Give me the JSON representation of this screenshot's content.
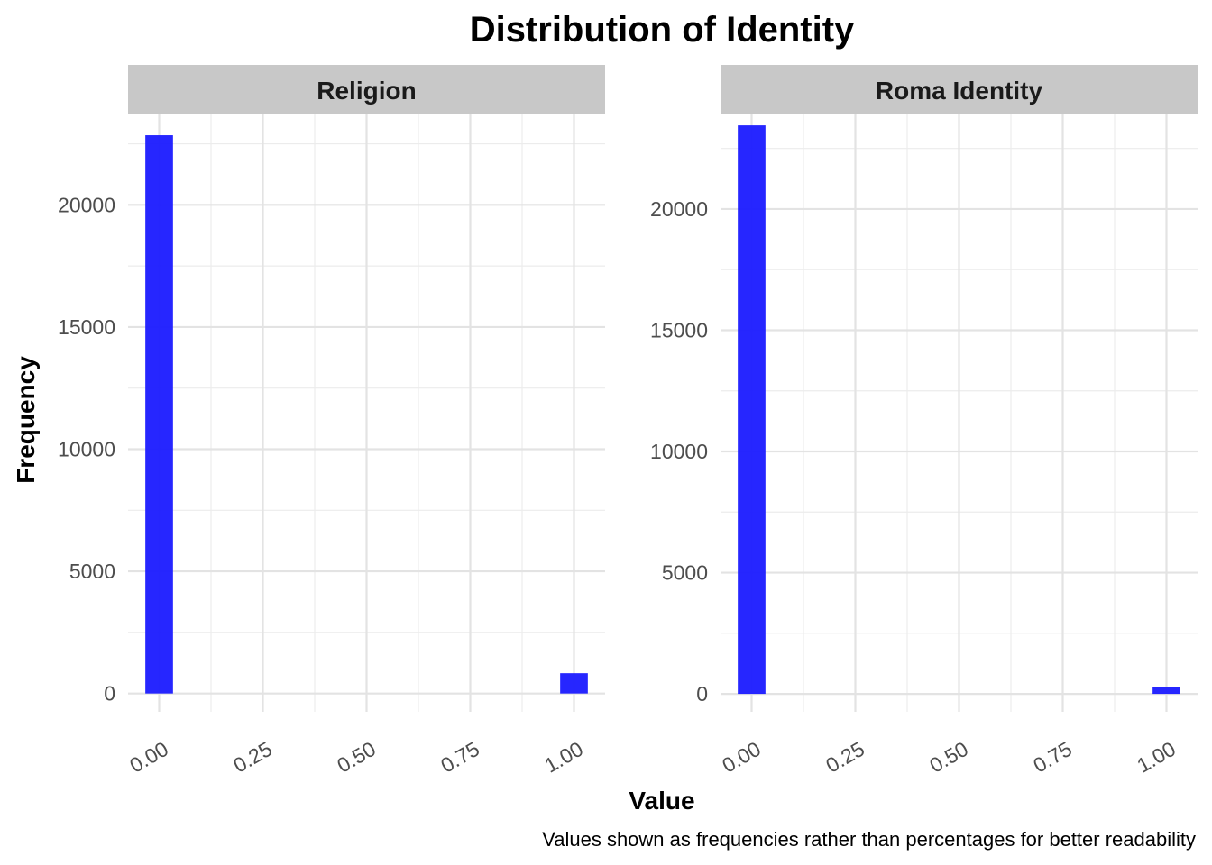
{
  "chart_data": {
    "type": "bar",
    "title": "Distribution of Identity",
    "xlabel": "Value",
    "ylabel": "Frequency",
    "caption": "Values shown as frequencies rather than percentages for better readability",
    "bar_color": "#1a1aff",
    "strip_color": "#c8c8c8",
    "grid": true,
    "x_ticks": [
      "0.00",
      "0.25",
      "0.50",
      "0.75",
      "1.00"
    ],
    "xlim": [
      -0.075,
      1.075
    ],
    "panels": [
      {
        "name": "Religion",
        "ylim": [
          -750,
          23700
        ],
        "y_ticks": [
          0,
          5000,
          10000,
          15000,
          20000
        ],
        "bars": [
          {
            "x": 0.0,
            "value": 22850
          },
          {
            "x": 1.0,
            "value": 830
          }
        ]
      },
      {
        "name": "Roma Identity",
        "ylim": [
          -740,
          23900
        ],
        "y_ticks": [
          0,
          5000,
          10000,
          15000,
          20000
        ],
        "bars": [
          {
            "x": 0.0,
            "value": 23450
          },
          {
            "x": 1.0,
            "value": 270
          }
        ]
      }
    ]
  }
}
